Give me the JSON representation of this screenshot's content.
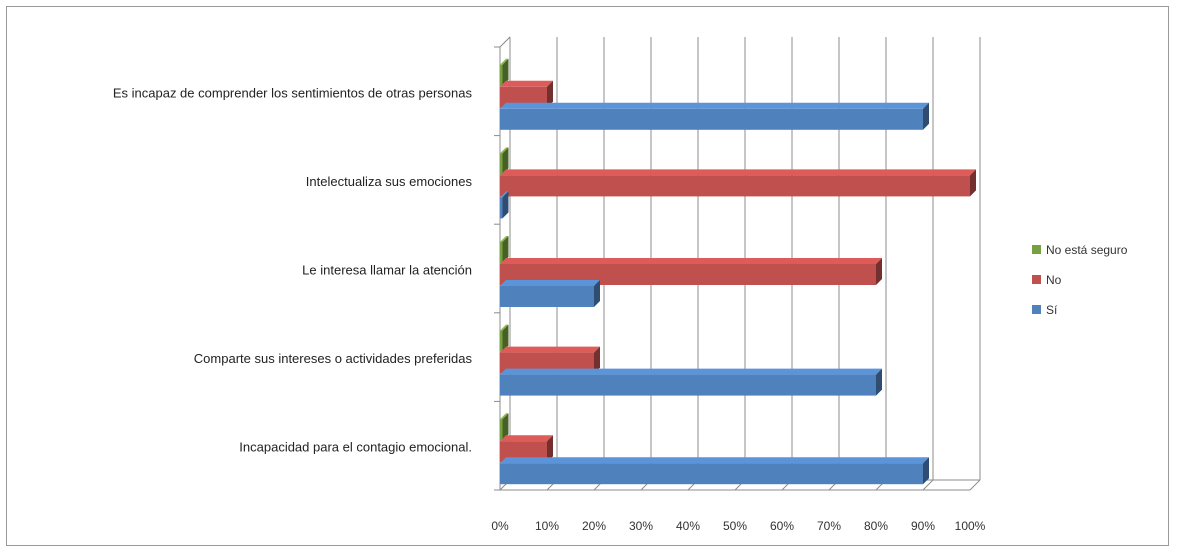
{
  "chart_data": {
    "type": "bar",
    "orientation": "horizontal",
    "stacked": false,
    "categories": [
      "Es incapaz de comprender los sentimientos de otras personas",
      "Intelectualiza sus emociones",
      "Le interesa llamar la atención",
      "Comparte sus intereses o actividades preferidas",
      "Incapacidad para el contagio emocional."
    ],
    "series": [
      {
        "name": "No está seguro",
        "color": "#77a040",
        "values": [
          0,
          0,
          0,
          0,
          0
        ]
      },
      {
        "name": "No",
        "color": "#c0504d",
        "values": [
          10,
          100,
          80,
          20,
          10
        ]
      },
      {
        "name": "Sí",
        "color": "#4f81bd",
        "values": [
          90,
          0,
          20,
          80,
          90
        ]
      }
    ],
    "xlim": [
      0,
      100
    ],
    "x_ticks": [
      "0%",
      "10%",
      "20%",
      "30%",
      "40%",
      "50%",
      "60%",
      "70%",
      "80%",
      "90%",
      "100%"
    ],
    "grid": true,
    "legend_position": "right",
    "title": "",
    "xlabel": "",
    "ylabel": ""
  }
}
